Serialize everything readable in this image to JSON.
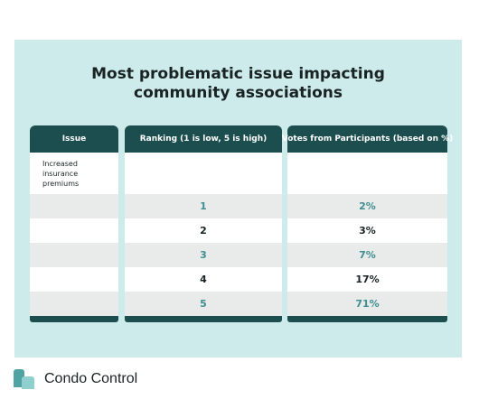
{
  "title_lines": [
    "Most problematic issue impacting",
    "community associations"
  ],
  "headers": {
    "issue": "Issue",
    "ranking": "Ranking (1 is low, 5 is high)",
    "votes": "Votes from Participants (based on %)"
  },
  "issue_lines": [
    "Increased",
    "insurance",
    "premiums"
  ],
  "chart_data": {
    "type": "table",
    "title": "Most problematic issue impacting community associations",
    "columns": [
      "Issue",
      "Ranking (1 is low, 5 is high)",
      "Votes from Participants (based on %)"
    ],
    "issue": "Increased insurance premiums",
    "rows": [
      {
        "ranking": "1",
        "votes": "2%"
      },
      {
        "ranking": "2",
        "votes": "3%"
      },
      {
        "ranking": "3",
        "votes": "7%"
      },
      {
        "ranking": "4",
        "votes": "17%"
      },
      {
        "ranking": "5",
        "votes": "71%"
      }
    ]
  },
  "colors": {
    "panel_background": "#cdebea",
    "header": "#1c4e4f",
    "accent_text": "#3f8e90",
    "stripe": "#e9eaea"
  },
  "brand": {
    "name": "Condo Control",
    "logo_icon": "condo-control-logo-icon"
  }
}
